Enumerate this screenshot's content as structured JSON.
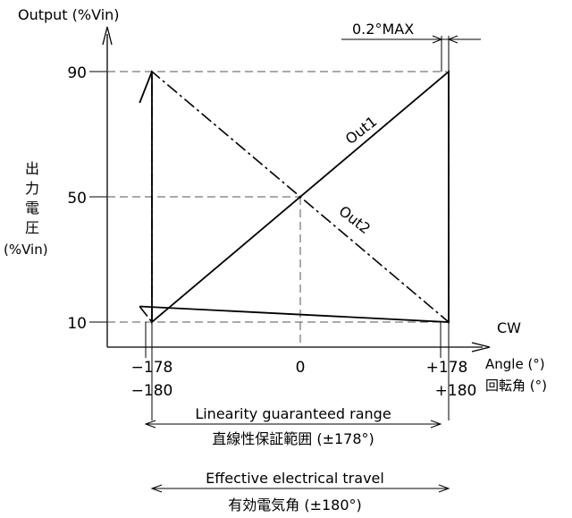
{
  "chart_data": {
    "type": "line",
    "title": "",
    "y_axis_label": "Output (%Vin)",
    "y_axis_label_jp": [
      "出",
      "力",
      "電",
      "圧"
    ],
    "y_axis_unit_jp": "(%Vin)",
    "x_axis_label": "Angle (°)",
    "x_axis_label_jp": "回転角 (°)",
    "x_direction_label": "CW",
    "y_ticks": [
      10,
      50,
      90
    ],
    "x_ticks_top": [
      "−178",
      "0",
      "+178"
    ],
    "x_ticks_bottom": [
      "−180",
      "+180"
    ],
    "xlim": [
      -195,
      195
    ],
    "ylim": [
      0,
      100
    ],
    "series": [
      {
        "name": "Out1",
        "points": [
          [
            -195,
            80
          ],
          [
            -180,
            90
          ],
          [
            -180,
            10
          ],
          [
            180,
            90
          ],
          [
            180,
            10
          ],
          [
            -195,
            15
          ]
        ]
      },
      {
        "name": "Out2",
        "points": [
          [
            -195,
            15
          ],
          [
            -180,
            10
          ],
          [
            -180,
            90
          ],
          [
            180,
            10
          ],
          [
            180,
            90
          ]
        ]
      }
    ],
    "series_labels": [
      "Out1",
      "Out2"
    ],
    "annotations": {
      "max_gap": "0.2°MAX",
      "linearity_range": "Linearity guaranteed range",
      "linearity_range_jp": "直線性保証範囲 (±178°)",
      "effective_travel": "Effective electrical travel",
      "effective_travel_jp": "有効電気角 (±180°)"
    },
    "grid": false,
    "legend": "none"
  }
}
